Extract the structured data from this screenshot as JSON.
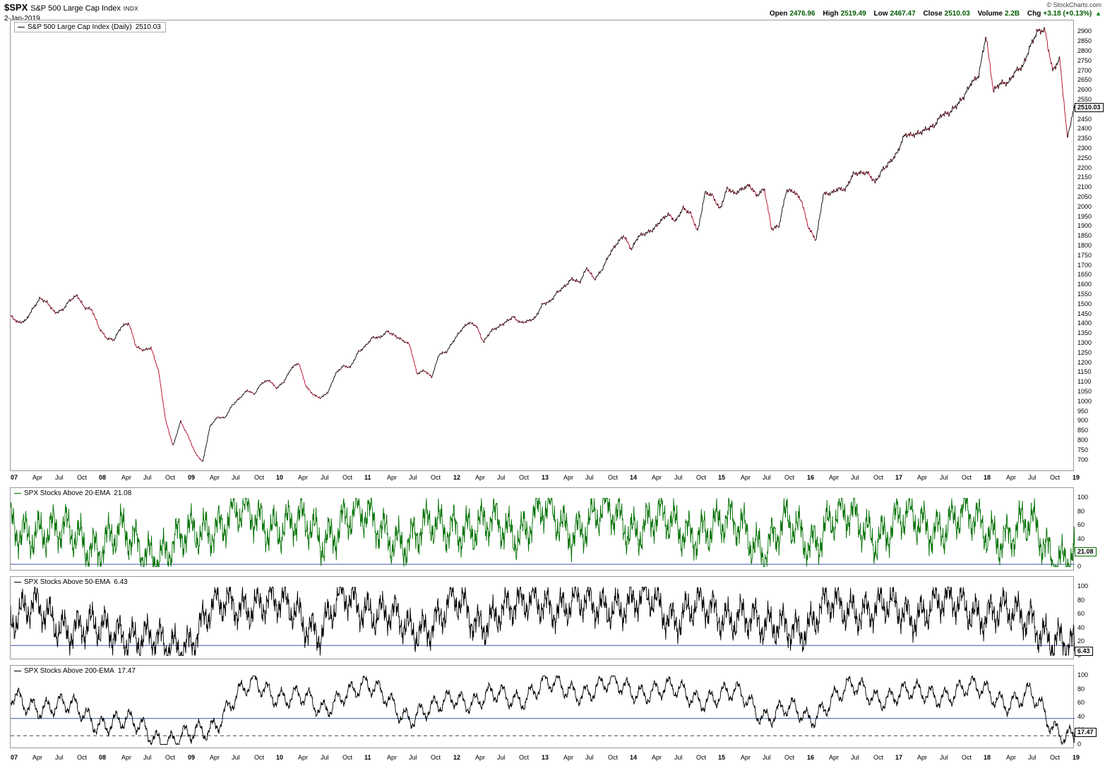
{
  "header": {
    "symbol": "$SPX",
    "name": "S&P 500 Large Cap Index",
    "exchange": "INDX",
    "date": "2-Jan-2019",
    "copyright": "© StockCharts.com",
    "quote": {
      "open_label": "Open",
      "open": "2476.96",
      "high_label": "High",
      "high": "2519.49",
      "low_label": "Low",
      "low": "2467.47",
      "close_label": "Close",
      "close": "2510.03",
      "volume_label": "Volume",
      "volume": "2.2B",
      "chg_label": "Chg",
      "chg": "+3.18 (+0.13%)",
      "chg_arrow": "▲"
    }
  },
  "chart_data": {
    "type": "line",
    "title": "$SPX S&P 500 Large Cap Index (Daily) with percent of SPX stocks above 20/50/200-day EMA, 2007-2019",
    "x_range_years": [
      2007,
      2019
    ],
    "x_ticks": [
      "07",
      "Apr",
      "Jul",
      "Oct",
      "08",
      "Apr",
      "Jul",
      "Oct",
      "09",
      "Apr",
      "Jul",
      "Oct",
      "10",
      "Apr",
      "Jul",
      "Oct",
      "11",
      "Apr",
      "Jul",
      "Oct",
      "12",
      "Apr",
      "Jul",
      "Oct",
      "13",
      "Apr",
      "Jul",
      "Oct",
      "14",
      "Apr",
      "Jul",
      "Oct",
      "15",
      "Apr",
      "Jul",
      "Oct",
      "16",
      "Apr",
      "Jul",
      "Oct",
      "17",
      "Apr",
      "Jul",
      "Oct",
      "18",
      "Apr",
      "Jul",
      "Oct",
      "19"
    ],
    "panels": [
      {
        "id": "price",
        "legend_label": "S&P 500 Large Cap Index (Daily)",
        "last_value": 2510.03,
        "last_value_text": "2510.03",
        "color_up": "#000000",
        "color_down": "#b30021",
        "y_axis": {
          "min": 700,
          "max": 2900,
          "tick_step": 50
        },
        "ylim": [
          670,
          2930
        ],
        "sampling": "monthly-approx",
        "start": "Jan-2007",
        "values": [
          1438,
          1407,
          1421,
          1482,
          1531,
          1503,
          1455,
          1474,
          1527,
          1549,
          1481,
          1468,
          1379,
          1331,
          1323,
          1386,
          1400,
          1280,
          1267,
          1283,
          1166,
          900,
          770,
          900,
          830,
          740,
          690,
          873,
          919,
          919,
          987,
          1021,
          1057,
          1036,
          1096,
          1115,
          1074,
          1104,
          1169,
          1197,
          1080,
          1040,
          1022,
          1050,
          1141,
          1183,
          1181,
          1258,
          1286,
          1327,
          1326,
          1364,
          1345,
          1321,
          1292,
          1140,
          1160,
          1130,
          1250,
          1258,
          1312,
          1366,
          1408,
          1398,
          1310,
          1362,
          1379,
          1407,
          1441,
          1412,
          1416,
          1426,
          1498,
          1515,
          1569,
          1598,
          1631,
          1606,
          1686,
          1633,
          1682,
          1757,
          1806,
          1848,
          1783,
          1859,
          1872,
          1884,
          1924,
          1960,
          1931,
          2003,
          1972,
          1870,
          2068,
          2059,
          1995,
          2105,
          2068,
          2086,
          2107,
          2063,
          2104,
          1890,
          1900,
          2079,
          2080,
          2044,
          1900,
          1830,
          2060,
          2065,
          2097,
          2099,
          2174,
          2171,
          2168,
          2126,
          2199,
          2239,
          2279,
          2364,
          2363,
          2384,
          2412,
          2423,
          2470,
          2472,
          2519,
          2575,
          2648,
          2674,
          2872,
          2590,
          2640,
          2648,
          2705,
          2718,
          2816,
          2902,
          2914,
          2712,
          2760,
          2351,
          2510.03
        ],
        "noise": {
          "rel_amplitude": 0.006
        }
      },
      {
        "id": "pct-above-20ema",
        "legend_label": "SPX Stocks Above 20-EMA",
        "last_value": 21.08,
        "last_value_text": "21.08",
        "color": "#007000",
        "y_axis": {
          "min": 0,
          "max": 100,
          "tick_step": 20
        },
        "threshold_lines": [
          {
            "value": 4,
            "color": "#4055a5",
            "style": "solid"
          }
        ],
        "sampling": "quarterly-approx",
        "start": "Q1-2007",
        "values": [
          55,
          60,
          45,
          45,
          35,
          40,
          30,
          20,
          40,
          65,
          70,
          70,
          65,
          60,
          40,
          75,
          65,
          55,
          35,
          55,
          70,
          45,
          65,
          55,
          75,
          60,
          65,
          75,
          60,
          70,
          50,
          60,
          55,
          60,
          30,
          55,
          40,
          70,
          65,
          50,
          65,
          60,
          65,
          70,
          55,
          50,
          55,
          20,
          21.08
        ],
        "noise": {
          "amplitude": 34,
          "hf": 1,
          "seed": 1.3
        }
      },
      {
        "id": "pct-above-50ema",
        "legend_label": "SPX Stocks Above 50-EMA",
        "last_value": 6.43,
        "last_value_text": "6.43",
        "color": "#000000",
        "y_axis": {
          "min": 0,
          "max": 100,
          "tick_step": 20
        },
        "threshold_lines": [
          {
            "value": 15,
            "color": "#4055a5",
            "style": "solid"
          }
        ],
        "sampling": "quarterly-approx",
        "start": "Q1-2007",
        "values": [
          60,
          65,
          50,
          45,
          30,
          40,
          25,
          8,
          25,
          60,
          75,
          80,
          70,
          65,
          35,
          80,
          75,
          60,
          30,
          55,
          75,
          45,
          70,
          65,
          85,
          70,
          70,
          80,
          70,
          80,
          60,
          65,
          60,
          65,
          30,
          55,
          35,
          75,
          75,
          60,
          70,
          65,
          70,
          80,
          60,
          55,
          65,
          15,
          6.43
        ],
        "noise": {
          "amplitude": 30,
          "hf": 1,
          "seed": 2.6
        }
      },
      {
        "id": "pct-above-200ema",
        "legend_label": "SPX Stocks Above 200-EMA",
        "last_value": 17.47,
        "last_value_text": "17.47",
        "color": "#000000",
        "y_axis": {
          "min": 0,
          "max": 100,
          "tick_step": 20
        },
        "threshold_lines": [
          {
            "value": 38,
            "color": "#4055a5",
            "style": "solid"
          },
          {
            "value": 13,
            "color": "#444444",
            "style": "dashed"
          }
        ],
        "sampling": "quarterly-approx",
        "start": "Q1-2007",
        "values": [
          65,
          60,
          55,
          50,
          35,
          30,
          25,
          6,
          8,
          25,
          65,
          85,
          75,
          70,
          45,
          80,
          80,
          70,
          40,
          45,
          75,
          60,
          70,
          70,
          85,
          80,
          80,
          85,
          80,
          80,
          75,
          70,
          70,
          70,
          45,
          50,
          35,
          70,
          80,
          70,
          75,
          70,
          75,
          80,
          75,
          65,
          70,
          25,
          17.47
        ],
        "noise": {
          "amplitude": 20,
          "hf": 0.45,
          "seed": 4.1
        }
      }
    ]
  }
}
